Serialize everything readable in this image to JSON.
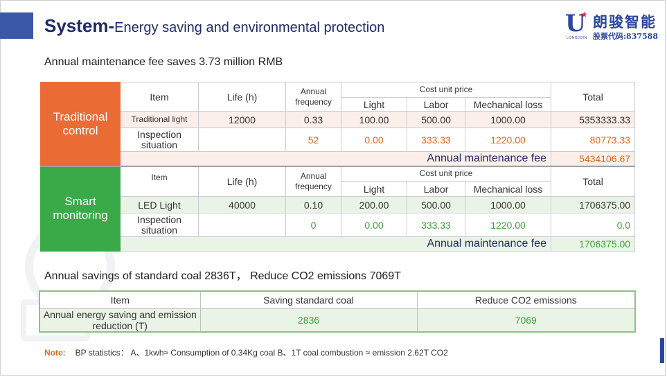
{
  "header": {
    "title_bold": "System-",
    "title_rest": "Energy saving and environmental protection",
    "logo": {
      "mark": "U",
      "brand": "LONGJOIN",
      "cn_name": "朗骏智能",
      "cn_code": "股票代码:837588"
    }
  },
  "section1": {
    "subtitle": "Annual maintenance fee saves 3.73 million RMB"
  },
  "maintenance_table": {
    "traditional": {
      "side_label": "Traditional control",
      "headers": {
        "item": "Item",
        "life": "Life (h)",
        "frequency": "Annual frequency",
        "cost_unit_price": "Cost unit price",
        "light": "Light",
        "labor": "Labor",
        "mechanical_loss": "Mechanical loss",
        "total": "Total"
      },
      "rows": [
        {
          "item": "Traditional light",
          "life": "12000",
          "frequency": "0.33",
          "light": "100.00",
          "labor": "500.00",
          "mechanical_loss": "1000.00",
          "total": "5353333.33"
        },
        {
          "item": "Inspection situation",
          "life": "",
          "frequency": "52",
          "light": "0.00",
          "labor": "333.33",
          "mechanical_loss": "1220.00",
          "total": "80773.33"
        }
      ],
      "summary_label": "Annual maintenance fee",
      "summary_value": "5434106.67"
    },
    "smart": {
      "side_label": "Smart monitoring",
      "headers": {
        "item": "Item",
        "life": "Life  (h)",
        "frequency": "Annual frequency",
        "cost_unit_price": "Cost unit price",
        "light": "Light",
        "labor": "Labor",
        "mechanical_loss": "Mechanical loss",
        "total": "Total"
      },
      "rows": [
        {
          "item": "LED Light",
          "life": "40000",
          "frequency": "0.10",
          "light": "200.00",
          "labor": "500.00",
          "mechanical_loss": "1000.00",
          "total": "1706375.00"
        },
        {
          "item": "Inspection situation",
          "life": "",
          "frequency": "0",
          "light": "0.00",
          "labor": "333.33",
          "mechanical_loss": "1220.00",
          "total": "0.0"
        }
      ],
      "summary_label": "Annual maintenance fee",
      "summary_value": "1706375.00"
    }
  },
  "section2": {
    "subtitle": "Annual savings of standard coal 2836T， Reduce CO2 emissions 7069T"
  },
  "savings_table": {
    "headers": [
      "Item",
      "Saving standard coal",
      "Reduce CO2 emissions"
    ],
    "row": {
      "item": "Annual energy saving and emission reduction (T)",
      "coal": "2836",
      "co2": "7069"
    }
  },
  "note": {
    "label": "Note:",
    "text": "BP statistics：  A、1kwh≈ Consumption of 0.34Kg coal   B、1T coal combustion ≈ emission 2.62T CO2"
  },
  "colors": {
    "primary_blue": "#3b57a8",
    "title_navy": "#1f2a66",
    "traditional_orange": "#eb6b35",
    "smart_green": "#3aaa49",
    "value_orange": "#e06a1e",
    "value_green": "#3aa33b"
  }
}
